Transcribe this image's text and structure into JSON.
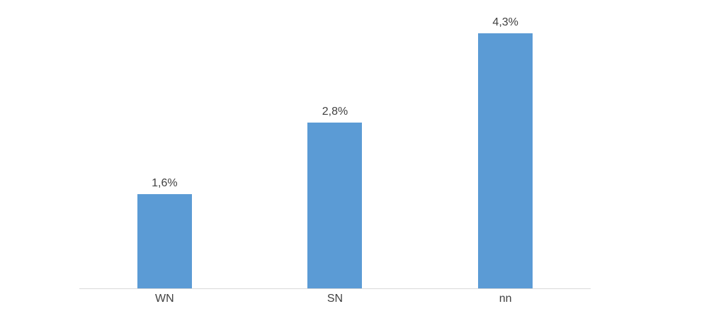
{
  "chart_data": {
    "type": "bar",
    "title": "",
    "xlabel": "",
    "ylabel": "",
    "categories": [
      "WN",
      "SN",
      "nn"
    ],
    "values": [
      1.6,
      2.8,
      4.3
    ],
    "value_labels": [
      "1,6%",
      "2,8%",
      "4,3%"
    ],
    "ylim": [
      0,
      4.3
    ],
    "grid": false,
    "legend": false,
    "colors": {
      "bar": "#5B9BD5",
      "axis_line": "#D9D9D9",
      "label_text": "#404040",
      "background": "#FFFFFF"
    }
  }
}
